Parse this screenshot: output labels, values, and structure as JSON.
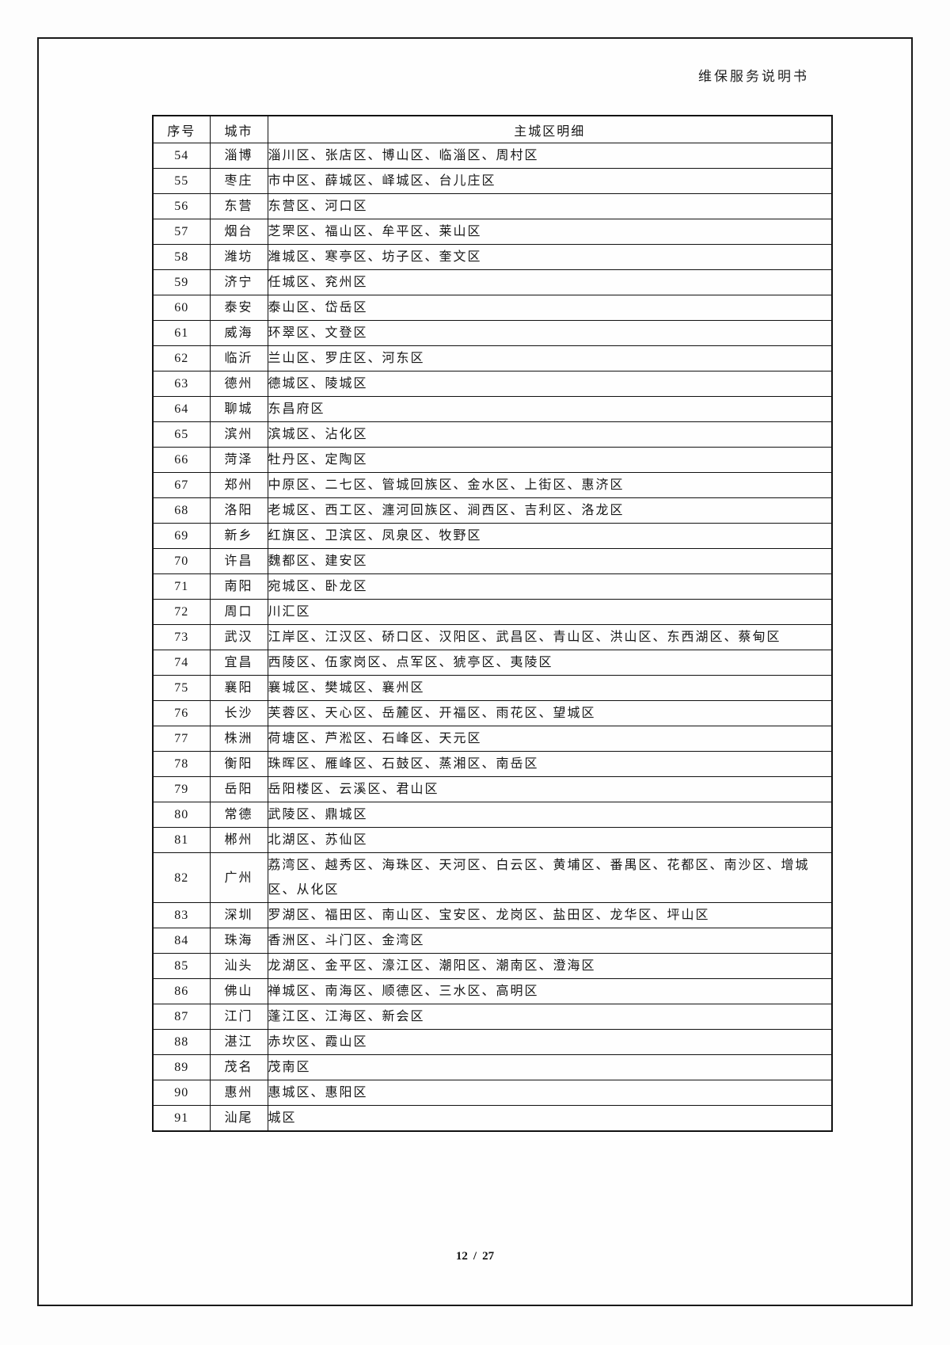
{
  "page": {
    "header_title": "维保服务说明书",
    "footer": {
      "current_page": "12",
      "separator": "/",
      "total_pages": "27"
    }
  },
  "table": {
    "columns": [
      "序号",
      "城市",
      "主城区明细"
    ],
    "rows": [
      {
        "no": "54",
        "city": "淄博",
        "districts": "淄川区、张店区、博山区、临淄区、周村区"
      },
      {
        "no": "55",
        "city": "枣庄",
        "districts": "市中区、薛城区、峄城区、台儿庄区"
      },
      {
        "no": "56",
        "city": "东营",
        "districts": "东营区、河口区"
      },
      {
        "no": "57",
        "city": "烟台",
        "districts": "芝罘区、福山区、牟平区、莱山区"
      },
      {
        "no": "58",
        "city": "潍坊",
        "districts": "潍城区、寒亭区、坊子区、奎文区"
      },
      {
        "no": "59",
        "city": "济宁",
        "districts": "任城区、兖州区"
      },
      {
        "no": "60",
        "city": "泰安",
        "districts": "泰山区、岱岳区"
      },
      {
        "no": "61",
        "city": "威海",
        "districts": "环翠区、文登区"
      },
      {
        "no": "62",
        "city": "临沂",
        "districts": "兰山区、罗庄区、河东区"
      },
      {
        "no": "63",
        "city": "德州",
        "districts": "德城区、陵城区"
      },
      {
        "no": "64",
        "city": "聊城",
        "districts": "东昌府区"
      },
      {
        "no": "65",
        "city": "滨州",
        "districts": "滨城区、沾化区"
      },
      {
        "no": "66",
        "city": "菏泽",
        "districts": "牡丹区、定陶区"
      },
      {
        "no": "67",
        "city": "郑州",
        "districts": "中原区、二七区、管城回族区、金水区、上街区、惠济区"
      },
      {
        "no": "68",
        "city": "洛阳",
        "districts": "老城区、西工区、瀍河回族区、涧西区、吉利区、洛龙区"
      },
      {
        "no": "69",
        "city": "新乡",
        "districts": "红旗区、卫滨区、凤泉区、牧野区"
      },
      {
        "no": "70",
        "city": "许昌",
        "districts": "魏都区、建安区"
      },
      {
        "no": "71",
        "city": "南阳",
        "districts": "宛城区、卧龙区"
      },
      {
        "no": "72",
        "city": "周口",
        "districts": "川汇区"
      },
      {
        "no": "73",
        "city": "武汉",
        "districts": "江岸区、江汉区、硚口区、汉阳区、武昌区、青山区、洪山区、东西湖区、蔡甸区"
      },
      {
        "no": "74",
        "city": "宜昌",
        "districts": "西陵区、伍家岗区、点军区、猇亭区、夷陵区"
      },
      {
        "no": "75",
        "city": "襄阳",
        "districts": "襄城区、樊城区、襄州区"
      },
      {
        "no": "76",
        "city": "长沙",
        "districts": "芙蓉区、天心区、岳麓区、开福区、雨花区、望城区"
      },
      {
        "no": "77",
        "city": "株洲",
        "districts": "荷塘区、芦淞区、石峰区、天元区"
      },
      {
        "no": "78",
        "city": "衡阳",
        "districts": "珠晖区、雁峰区、石鼓区、蒸湘区、南岳区"
      },
      {
        "no": "79",
        "city": "岳阳",
        "districts": "岳阳楼区、云溪区、君山区"
      },
      {
        "no": "80",
        "city": "常德",
        "districts": "武陵区、鼎城区"
      },
      {
        "no": "81",
        "city": "郴州",
        "districts": "北湖区、苏仙区"
      },
      {
        "no": "82",
        "city": "广州",
        "districts": "荔湾区、越秀区、海珠区、天河区、白云区、黄埔区、番禺区、花都区、南沙区、增城区、从化区"
      },
      {
        "no": "83",
        "city": "深圳",
        "districts": "罗湖区、福田区、南山区、宝安区、龙岗区、盐田区、龙华区、坪山区"
      },
      {
        "no": "84",
        "city": "珠海",
        "districts": "香洲区、斗门区、金湾区"
      },
      {
        "no": "85",
        "city": "汕头",
        "districts": "龙湖区、金平区、濠江区、潮阳区、潮南区、澄海区"
      },
      {
        "no": "86",
        "city": "佛山",
        "districts": "禅城区、南海区、顺德区、三水区、高明区"
      },
      {
        "no": "87",
        "city": "江门",
        "districts": "蓬江区、江海区、新会区"
      },
      {
        "no": "88",
        "city": "湛江",
        "districts": "赤坎区、霞山区"
      },
      {
        "no": "89",
        "city": "茂名",
        "districts": "茂南区"
      },
      {
        "no": "90",
        "city": "惠州",
        "districts": "惠城区、惠阳区"
      },
      {
        "no": "91",
        "city": "汕尾",
        "districts": "城区"
      }
    ]
  }
}
